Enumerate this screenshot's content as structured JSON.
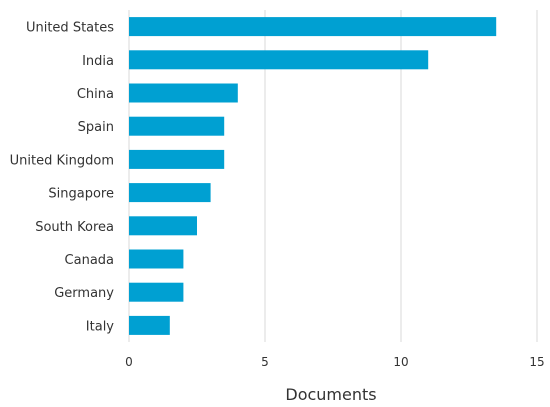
{
  "chart_data": {
    "type": "bar",
    "orientation": "horizontal",
    "categories": [
      "United States",
      "India",
      "China",
      "Spain",
      "United Kingdom",
      "Singapore",
      "South Korea",
      "Canada",
      "Germany",
      "Italy"
    ],
    "values": [
      13.5,
      11,
      4,
      3.5,
      3.5,
      3,
      2.5,
      2,
      2,
      1.5
    ],
    "xlabel": "Documents",
    "ylabel": "",
    "xlim": [
      0,
      15
    ],
    "xticks": [
      "0",
      "5",
      "10",
      "15"
    ],
    "grid": "vertical",
    "bar_color": "#00a0d2"
  }
}
